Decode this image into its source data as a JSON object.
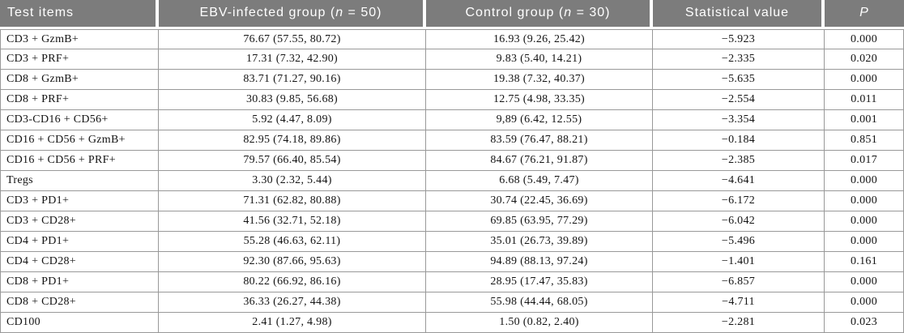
{
  "table": {
    "headers": {
      "col1": "Test items",
      "col2": {
        "prefix": "EBV-infected group (",
        "var": "n",
        "suffix": " = 50)"
      },
      "col3": {
        "prefix": "Control group (",
        "var": "n",
        "suffix": " = 30)"
      },
      "col4": "Statistical value",
      "col5": "P"
    },
    "rows": [
      [
        "CD3 + GzmB+",
        "76.67 (57.55, 80.72)",
        "16.93 (9.26, 25.42)",
        "−5.923",
        "0.000"
      ],
      [
        "CD3 + PRF+",
        "17.31 (7.32, 42.90)",
        "9.83 (5.40, 14.21)",
        "−2.335",
        "0.020"
      ],
      [
        "CD8 + GzmB+",
        "83.71 (71.27, 90.16)",
        "19.38 (7.32, 40.37)",
        "−5.635",
        "0.000"
      ],
      [
        "CD8 + PRF+",
        "30.83 (9.85, 56.68)",
        "12.75 (4.98, 33.35)",
        "−2.554",
        "0.011"
      ],
      [
        "CD3-CD16 + CD56+",
        "5.92 (4.47, 8.09)",
        "9,89 (6.42, 12.55)",
        "−3.354",
        "0.001"
      ],
      [
        "CD16 + CD56 + GzmB+",
        "82.95 (74.18, 89.86)",
        "83.59 (76.47, 88.21)",
        "−0.184",
        "0.851"
      ],
      [
        "CD16 + CD56 + PRF+",
        "79.57 (66.40, 85.54)",
        "84.67 (76.21, 91.87)",
        "−2.385",
        "0.017"
      ],
      [
        "Tregs",
        "3.30 (2.32, 5.44)",
        "6.68 (5.49, 7.47)",
        "−4.641",
        "0.000"
      ],
      [
        "CD3 + PD1+",
        "71.31 (62.82, 80.88)",
        "30.74 (22.45, 36.69)",
        "−6.172",
        "0.000"
      ],
      [
        "CD3 + CD28+",
        "41.56 (32.71, 52.18)",
        "69.85 (63.95, 77.29)",
        "−6.042",
        "0.000"
      ],
      [
        "CD4 + PD1+",
        "55.28 (46.63, 62.11)",
        "35.01 (26.73, 39.89)",
        "−5.496",
        "0.000"
      ],
      [
        "CD4 + CD28+",
        "92.30 (87.66, 95.63)",
        "94.89 (88.13, 97.24)",
        "−1.401",
        "0.161"
      ],
      [
        "CD8 + PD1+",
        "80.22 (66.92, 86.16)",
        "28.95 (17.47, 35.83)",
        "−6.857",
        "0.000"
      ],
      [
        "CD8 + CD28+",
        "36.33 (26.27, 44.38)",
        "55.98 (44.44, 68.05)",
        "−4.711",
        "0.000"
      ],
      [
        "CD100",
        "2.41 (1.27, 4.98)",
        "1.50 (0.82, 2.40)",
        "−2.281",
        "0.023"
      ]
    ]
  },
  "colors": {
    "header_bg": "#7c7c7c",
    "header_text": "#ffffff",
    "body_border": "#999999",
    "body_text": "#141414"
  }
}
